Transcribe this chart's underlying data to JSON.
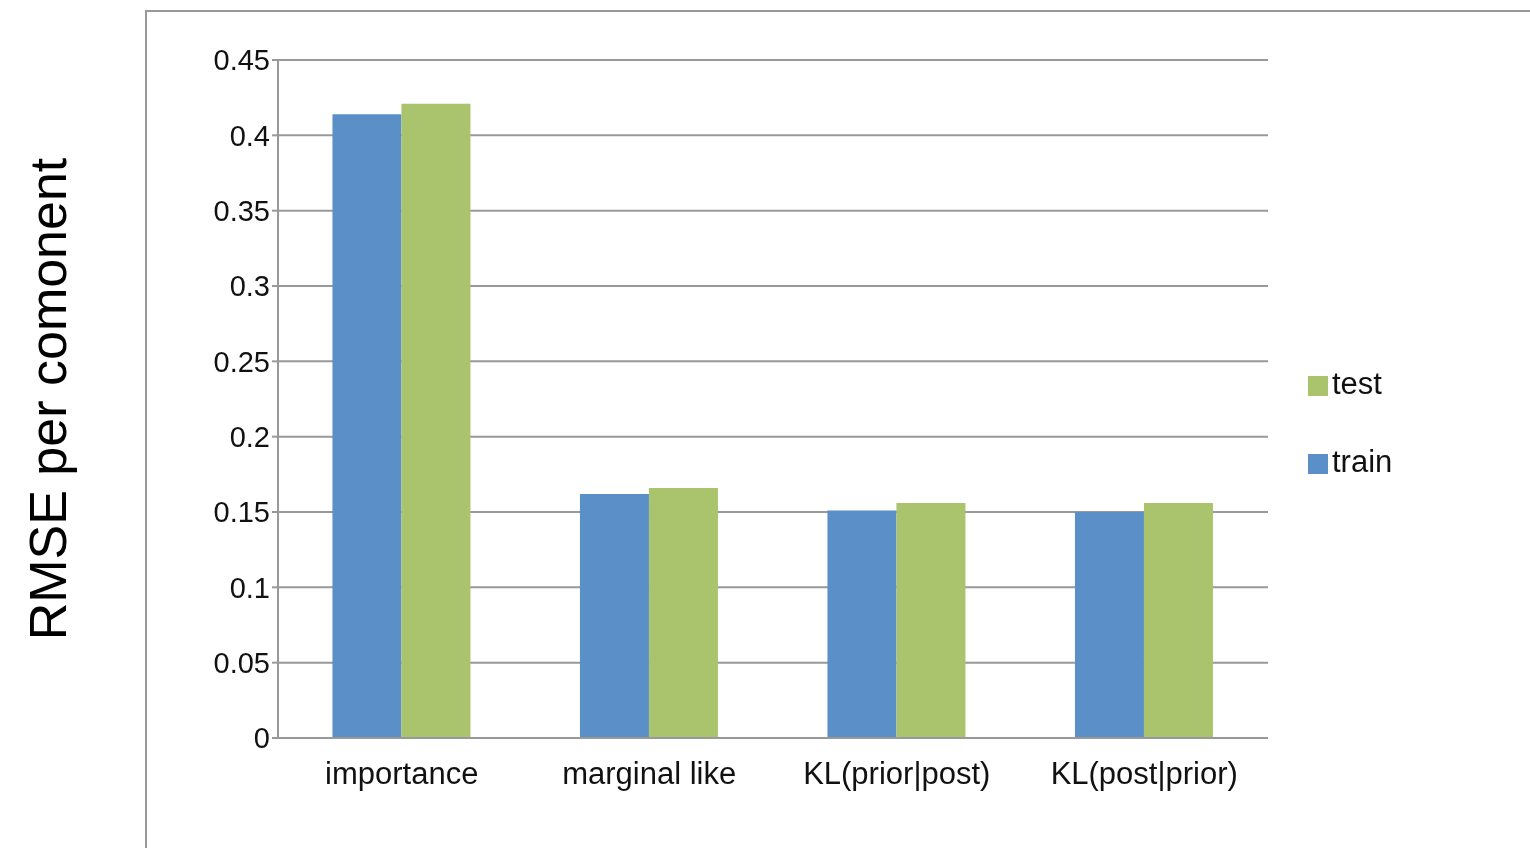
{
  "chart_data": {
    "type": "bar",
    "ylabel": "RMSE per comonent",
    "categories": [
      "importance",
      "marginal like",
      "KL(prior|post)",
      "KL(post|prior)"
    ],
    "series": [
      {
        "name": "train",
        "color": "#5b8fc7",
        "values": [
          0.414,
          0.162,
          0.151,
          0.15
        ]
      },
      {
        "name": "test",
        "color": "#a9c46c",
        "values": [
          0.421,
          0.166,
          0.156,
          0.156
        ]
      }
    ],
    "ylim": [
      0,
      0.45
    ],
    "yticks": [
      0,
      0.05,
      0.1,
      0.15,
      0.2,
      0.25,
      0.3,
      0.35,
      0.4,
      0.45
    ],
    "grid": "y",
    "legend": "right"
  }
}
